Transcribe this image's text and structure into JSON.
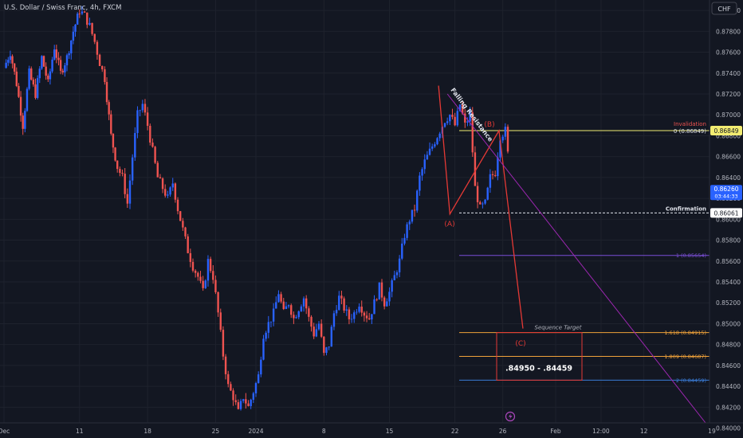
{
  "header": {
    "symbol_title": "U.S. Dollar / Swiss Franc, 4h, FXCM",
    "currency_button": "CHF"
  },
  "chart_data": {
    "type": "candlestick",
    "symbol": "USDCHF",
    "interval": "4h",
    "y_range": [
      0.8405,
      0.881
    ],
    "y_ticks": [
      "0.88000",
      "0.87800",
      "0.87600",
      "0.87400",
      "0.87200",
      "0.87000",
      "0.86800",
      "0.86600",
      "0.86400",
      "0.86200",
      "0.86000",
      "0.85800",
      "0.85600",
      "0.85400",
      "0.85200",
      "0.85000",
      "0.84800",
      "0.84600",
      "0.84400",
      "0.84200",
      "0.84000"
    ],
    "x_ticks": [
      {
        "label": "Dec",
        "t": 0
      },
      {
        "label": "11",
        "t": 12
      },
      {
        "label": "18",
        "t": 22.8
      },
      {
        "label": "25",
        "t": 33.6
      },
      {
        "label": "2024",
        "t": 40
      },
      {
        "label": "8",
        "t": 50.8
      },
      {
        "label": "15",
        "t": 61.2
      },
      {
        "label": "22",
        "t": 71.6
      },
      {
        "label": "26",
        "t": 79.2
      },
      {
        "label": "Feb",
        "t": 87.6
      },
      {
        "label": "12:00",
        "t": 94.8
      },
      {
        "label": "12",
        "t": 101.6
      },
      {
        "label": "19",
        "t": 112.4
      }
    ],
    "price_path": [
      [
        0,
        0.8745
      ],
      [
        1,
        0.876
      ],
      [
        2,
        0.873
      ],
      [
        3,
        0.869
      ],
      [
        4,
        0.874
      ],
      [
        5,
        0.872
      ],
      [
        6,
        0.8755
      ],
      [
        7,
        0.873
      ],
      [
        8,
        0.8765
      ],
      [
        9,
        0.874
      ],
      [
        10,
        0.8755
      ],
      [
        11,
        0.878
      ],
      [
        12,
        0.88
      ],
      [
        12.8,
        0.8795
      ],
      [
        13.6,
        0.8785
      ],
      [
        14.4,
        0.877
      ],
      [
        15.2,
        0.875
      ],
      [
        16,
        0.8735
      ],
      [
        17,
        0.868
      ],
      [
        18,
        0.865
      ],
      [
        18.8,
        0.864
      ],
      [
        19.6,
        0.8615
      ],
      [
        20.4,
        0.866
      ],
      [
        21.2,
        0.87
      ],
      [
        22,
        0.871
      ],
      [
        22.8,
        0.869
      ],
      [
        23.6,
        0.8665
      ],
      [
        24.4,
        0.864
      ],
      [
        25.2,
        0.863
      ],
      [
        26,
        0.862
      ],
      [
        26.8,
        0.8635
      ],
      [
        27.6,
        0.861
      ],
      [
        28.4,
        0.859
      ],
      [
        29.2,
        0.857
      ],
      [
        30,
        0.8555
      ],
      [
        30.8,
        0.8545
      ],
      [
        31.6,
        0.853
      ],
      [
        32.4,
        0.856
      ],
      [
        33.2,
        0.8545
      ],
      [
        34,
        0.851
      ],
      [
        34.8,
        0.847
      ],
      [
        35.6,
        0.844
      ],
      [
        36.4,
        0.843
      ],
      [
        37.2,
        0.8415
      ],
      [
        38,
        0.843
      ],
      [
        38.8,
        0.842
      ],
      [
        39.6,
        0.8435
      ],
      [
        40.4,
        0.845
      ],
      [
        41.2,
        0.849
      ],
      [
        42,
        0.85
      ],
      [
        42.8,
        0.851
      ],
      [
        43.6,
        0.853
      ],
      [
        44.4,
        0.851
      ],
      [
        45.2,
        0.852
      ],
      [
        46,
        0.8505
      ],
      [
        46.8,
        0.8515
      ],
      [
        47.6,
        0.8525
      ],
      [
        48.4,
        0.8505
      ],
      [
        49.2,
        0.849
      ],
      [
        50,
        0.85
      ],
      [
        50.8,
        0.847
      ],
      [
        51.6,
        0.848
      ],
      [
        52.4,
        0.851
      ],
      [
        53.2,
        0.8525
      ],
      [
        54,
        0.8515
      ],
      [
        54.8,
        0.8505
      ],
      [
        55.6,
        0.851
      ],
      [
        56.4,
        0.852
      ],
      [
        57.2,
        0.851
      ],
      [
        58,
        0.8505
      ],
      [
        58.8,
        0.852
      ],
      [
        59.6,
        0.8535
      ],
      [
        60.4,
        0.852
      ],
      [
        61.2,
        0.853
      ],
      [
        62,
        0.8545
      ],
      [
        62.8,
        0.856
      ],
      [
        63.6,
        0.8585
      ],
      [
        64.4,
        0.86
      ],
      [
        65.2,
        0.861
      ],
      [
        66,
        0.864
      ],
      [
        66.8,
        0.8655
      ],
      [
        67.6,
        0.8665
      ],
      [
        68.4,
        0.8675
      ],
      [
        69.2,
        0.8685
      ],
      [
        70,
        0.8695
      ],
      [
        70.8,
        0.87
      ],
      [
        71.6,
        0.869
      ],
      [
        72.4,
        0.871
      ],
      [
        73.2,
        0.869
      ],
      [
        74,
        0.87
      ],
      [
        74.8,
        0.863
      ],
      [
        75.6,
        0.861
      ],
      [
        76.4,
        0.8615
      ],
      [
        77.2,
        0.864
      ],
      [
        78,
        0.8645
      ],
      [
        78.8,
        0.868
      ],
      [
        79.6,
        0.8685
      ],
      [
        80.4,
        0.864
      ],
      [
        81.2,
        0.863
      ],
      [
        82,
        0.8625
      ],
      [
        82.8,
        0.861
      ],
      [
        83.6,
        0.862
      ],
      [
        84.4,
        0.8615
      ],
      [
        85.2,
        0.863
      ],
      [
        85.6,
        0.8626
      ]
    ],
    "current_price": "0.86260",
    "countdown": "03:44:33",
    "levels": [
      {
        "label": "Invalidation",
        "value_label": "0 (0.86849)",
        "tag": "0.86849",
        "price": 0.86849,
        "color": "#f2ec71"
      },
      {
        "label": "Confirmation",
        "tag": "0.86061",
        "price": 0.86061,
        "color": "#e0e3eb"
      },
      {
        "value_label": "1 (0.85654)",
        "price": 0.85654,
        "color": "#7b4fd6"
      },
      {
        "value_label": "1.618 (0.84915)",
        "price": 0.84915,
        "color": "#f0a23a"
      },
      {
        "value_label": "1.809 (0.84687)",
        "price": 0.84687,
        "color": "#f0a23a"
      },
      {
        "value_label": "2 (0.84459)",
        "price": 0.84459,
        "color": "#3a7bd5"
      }
    ],
    "wave_labels": [
      "(A)",
      "(B)",
      "(C)"
    ],
    "annotations": {
      "falling_resistance": "Falling Resistance",
      "sequence_target": "Sequence Target",
      "target_range": ".84950 - .84459"
    },
    "colors": {
      "up": "#2962ff",
      "down": "#ef5350",
      "wave": "#e53935",
      "resistance": "#9c27b0",
      "grid": "#1e222d",
      "text": "#b2b5be"
    }
  }
}
